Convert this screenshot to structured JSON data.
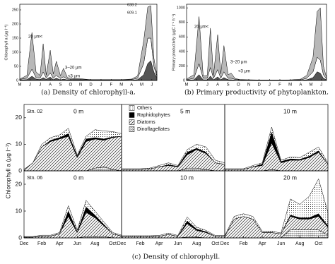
{
  "chart_data": [
    {
      "type": "area",
      "caption": "(a) Density of chlorophyll-a.",
      "ylabel": "Chlorophyll a (μg l⁻¹)",
      "x": [
        0,
        0.7,
        1.2,
        1.6,
        2.0,
        2.3,
        2.6,
        3.0,
        3.3,
        3.6,
        4.0,
        4.3,
        4.7,
        5.2,
        6,
        7,
        8,
        9,
        10,
        11,
        11.6,
        12.2,
        12.6,
        12.9,
        13.2,
        13.5
      ],
      "xlim": [
        0,
        13.5
      ],
      "xticks": [
        {
          "value": 0,
          "label": "M"
        },
        {
          "value": 1,
          "label": "J"
        },
        {
          "value": 2,
          "label": "J"
        },
        {
          "value": 3,
          "label": "A"
        },
        {
          "value": 4,
          "label": "S"
        },
        {
          "value": 5,
          "label": "O"
        },
        {
          "value": 6,
          "label": "N"
        },
        {
          "value": 7,
          "label": "D"
        },
        {
          "value": 8,
          "label": "J"
        },
        {
          "value": 9,
          "label": "F"
        },
        {
          "value": 10,
          "label": "M"
        },
        {
          "value": 11,
          "label": "A"
        },
        {
          "value": 12,
          "label": "M"
        },
        {
          "value": 13,
          "label": "J"
        }
      ],
      "ylim": [
        0,
        270
      ],
      "yticks": [
        0,
        50,
        100,
        150,
        200,
        250
      ],
      "annotations": [
        "638.2",
        "609.1"
      ],
      "series": [
        {
          "name": "<3 μm",
          "color": "#555555",
          "values": [
            2,
            3,
            15,
            5,
            3,
            10,
            4,
            12,
            3,
            8,
            2,
            5,
            2,
            2,
            2,
            1,
            1,
            1,
            1,
            1,
            3,
            20,
            60,
            70,
            30,
            10
          ]
        },
        {
          "name": "3–20 μm",
          "color": "#ffffff",
          "values": [
            2,
            5,
            25,
            5,
            5,
            20,
            5,
            15,
            5,
            10,
            5,
            8,
            3,
            2,
            2,
            1,
            1,
            1,
            1,
            2,
            5,
            40,
            90,
            80,
            20,
            5
          ]
        },
        {
          "name": "20 μm<",
          "color": "#b8b8b8",
          "values": [
            1,
            10,
            130,
            20,
            10,
            100,
            10,
            80,
            15,
            50,
            10,
            30,
            5,
            3,
            2,
            1,
            1,
            1,
            1,
            2,
            8,
            80,
            110,
            115,
            30,
            5
          ]
        }
      ]
    },
    {
      "type": "area",
      "caption": "(b) Primary productivity of phytoplankton.",
      "ylabel": "Primary productivity (μgC l⁻¹ h⁻¹)",
      "x": [
        0,
        0.7,
        1.2,
        1.6,
        2.0,
        2.3,
        2.6,
        3.0,
        3.3,
        3.6,
        4.0,
        4.3,
        4.7,
        5.2,
        6,
        7,
        8,
        9,
        10,
        11,
        11.6,
        12.2,
        12.6,
        12.9,
        13.2,
        13.5
      ],
      "xlim": [
        0,
        13.5
      ],
      "xticks": [
        {
          "value": 0,
          "label": "M"
        },
        {
          "value": 1,
          "label": "J"
        },
        {
          "value": 2,
          "label": "J"
        },
        {
          "value": 3,
          "label": "A"
        },
        {
          "value": 4,
          "label": "S"
        },
        {
          "value": 5,
          "label": "O"
        },
        {
          "value": 6,
          "label": "N"
        },
        {
          "value": 7,
          "label": "D"
        },
        {
          "value": 8,
          "label": "J"
        },
        {
          "value": 9,
          "label": "F"
        },
        {
          "value": 10,
          "label": "M"
        },
        {
          "value": 11,
          "label": "A"
        },
        {
          "value": 12,
          "label": "M"
        },
        {
          "value": 13,
          "label": "J"
        }
      ],
      "ylim": [
        0,
        1050
      ],
      "yticks": [
        0,
        200,
        400,
        600,
        800,
        1000
      ],
      "series": [
        {
          "name": "<3 μm",
          "color": "#555555",
          "values": [
            5,
            10,
            80,
            10,
            10,
            60,
            10,
            50,
            10,
            40,
            10,
            10,
            5,
            3,
            2,
            2,
            2,
            2,
            2,
            3,
            10,
            40,
            120,
            100,
            30,
            10
          ]
        },
        {
          "name": "3–20 μm",
          "color": "#ffffff",
          "values": [
            5,
            20,
            150,
            20,
            20,
            120,
            20,
            100,
            20,
            80,
            20,
            20,
            10,
            5,
            3,
            2,
            2,
            2,
            3,
            5,
            20,
            80,
            200,
            180,
            50,
            10
          ]
        },
        {
          "name": "20 μm<",
          "color": "#b8b8b8",
          "values": [
            10,
            50,
            650,
            30,
            40,
            540,
            40,
            480,
            60,
            360,
            50,
            70,
            10,
            5,
            5,
            3,
            3,
            3,
            3,
            10,
            40,
            200,
            630,
            720,
            120,
            20
          ]
        }
      ]
    },
    {
      "type": "area",
      "caption": "(c) Density of chlorophyll.",
      "ylabel": "Chlorophyll a (μg l⁻¹)",
      "x": [
        0,
        1,
        2,
        3,
        4,
        5,
        6,
        7,
        8,
        9,
        10,
        11
      ],
      "xlim": [
        0,
        11
      ],
      "xticks": [
        {
          "value": 0,
          "label": "Dec"
        },
        {
          "value": 2,
          "label": "Feb"
        },
        {
          "value": 4,
          "label": "Apr"
        },
        {
          "value": 6,
          "label": "Jun"
        },
        {
          "value": 8,
          "label": "Aug"
        },
        {
          "value": 10,
          "label": "Oct"
        }
      ],
      "ylim": [
        0,
        25
      ],
      "yticks": [
        0,
        10,
        20
      ],
      "legend": [
        {
          "name": "Others",
          "pattern": "dots"
        },
        {
          "name": "Raphidophytes",
          "pattern": "solid"
        },
        {
          "name": "Diatoms",
          "pattern": "hatch"
        },
        {
          "name": "Dinoflagellates",
          "pattern": "crosshatch"
        }
      ],
      "panels": [
        {
          "station": "Stn. 02",
          "depth": "0 m",
          "series": [
            {
              "values": [
                0,
                0,
                1,
                1,
                1,
                2,
                0.5,
                1,
                3,
                3,
                2,
                1
              ]
            },
            {
              "values": [
                0,
                0,
                0,
                0.5,
                0.5,
                1,
                0.5,
                1,
                0.5,
                0.5,
                0.3,
                0
              ]
            },
            {
              "values": [
                0.5,
                3,
                9,
                11,
                12,
                13,
                5,
                11,
                11,
                10,
                12,
                13
              ]
            },
            {
              "values": [
                0,
                0,
                0,
                0,
                0,
                0,
                0,
                0,
                1,
                1.5,
                0.5,
                0
              ]
            }
          ]
        },
        {
          "depth": "5 m",
          "series": [
            {
              "values": [
                0.3,
                0.3,
                0.3,
                0.3,
                0.5,
                0.7,
                0.3,
                1,
                1.5,
                2,
                1,
                0.5
              ]
            },
            {
              "values": [
                0,
                0,
                0,
                0,
                0,
                0.3,
                0.2,
                1,
                0.5,
                0.5,
                0,
                0
              ]
            },
            {
              "values": [
                0.5,
                0.5,
                0.5,
                0.7,
                1.5,
                2,
                1.5,
                5,
                7,
                6,
                3,
                2.5
              ]
            },
            {
              "values": [
                0,
                0,
                0,
                0,
                0,
                0,
                0,
                1,
                1,
                0.5,
                0,
                0
              ]
            }
          ]
        },
        {
          "depth": "10 m",
          "series": [
            {
              "values": [
                0.3,
                0.3,
                0.3,
                0.5,
                0.5,
                2,
                0.5,
                0.7,
                0.7,
                1.5,
                1.5,
                0.5
              ]
            },
            {
              "values": [
                0,
                0,
                0,
                0,
                0.5,
                4,
                0.5,
                0.5,
                0.3,
                0.5,
                0.5,
                0
              ]
            },
            {
              "values": [
                0.5,
                0.5,
                0.5,
                1.5,
                2,
                10,
                3,
                4,
                4,
                5,
                7,
                2.5
              ]
            },
            {
              "values": [
                0,
                0,
                0,
                0,
                0,
                0.5,
                0,
                0,
                0,
                0,
                0,
                0
              ]
            }
          ]
        },
        {
          "station": "Stn. 06",
          "depth": "0 m",
          "series": [
            {
              "values": [
                0.2,
                0.2,
                0.3,
                0.3,
                0.5,
                2,
                0.7,
                2.5,
                1.5,
                1,
                0.5,
                0.3
              ]
            },
            {
              "values": [
                0,
                0,
                0,
                0,
                0,
                2,
                0.3,
                2,
                1,
                0.5,
                0,
                0
              ]
            },
            {
              "values": [
                0.3,
                0.3,
                0.7,
                0.7,
                1.5,
                8,
                2,
                9,
                7,
                4,
                1.5,
                0.7
              ]
            },
            {
              "values": [
                0,
                0,
                0,
                0,
                0,
                0,
                0,
                0.5,
                0.5,
                0.5,
                0,
                0
              ]
            }
          ]
        },
        {
          "depth": "10 m",
          "series": [
            {
              "values": [
                0.3,
                0.3,
                0.3,
                0.3,
                0.3,
                0.5,
                0.3,
                1.5,
                0.7,
                0.5,
                0.3,
                0.3
              ]
            },
            {
              "values": [
                0,
                0,
                0,
                0,
                0,
                0,
                0,
                1,
                0.5,
                0.3,
                0,
                0
              ]
            },
            {
              "values": [
                0.5,
                0.5,
                0.5,
                0.5,
                0.6,
                1.3,
                0.6,
                5,
                2.5,
                2,
                0.6,
                0.6
              ]
            },
            {
              "values": [
                0,
                0,
                0,
                0,
                0,
                0,
                0,
                0.3,
                0.3,
                0,
                0,
                0
              ]
            }
          ]
        },
        {
          "depth": "20 m",
          "series": [
            {
              "values": [
                0.3,
                1,
                1,
                1,
                0.5,
                0.5,
                0.3,
                6,
                5,
                8,
                13,
                5
              ]
            },
            {
              "values": [
                0,
                0,
                0,
                0,
                0,
                0,
                0,
                0.5,
                0.5,
                0.5,
                1,
                0.5
              ]
            },
            {
              "values": [
                0.5,
                7,
                8,
                7,
                2,
                2,
                1.5,
                5,
                4,
                4,
                5,
                3
              ]
            },
            {
              "values": [
                0,
                0,
                0,
                0,
                0,
                0,
                0,
                3,
                3,
                3,
                3,
                1
              ]
            }
          ]
        }
      ]
    }
  ]
}
